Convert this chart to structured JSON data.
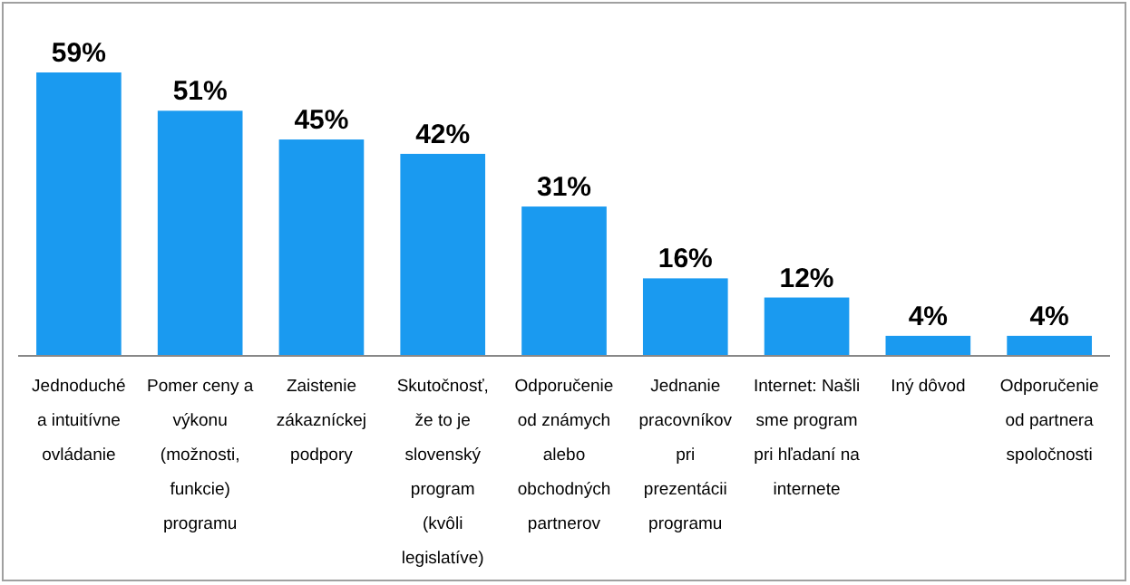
{
  "chart_data": {
    "type": "bar",
    "categories": [
      "Jednoduché a intuitívne ovládanie",
      "Pomer ceny a výkonu (možnosti, funkcie) programu",
      "Zaistenie zákazníckej podpory",
      "Skutočnosť, že to je slovenský program (kvôli legislatíve)",
      "Odporučenie od známych alebo obchodných partnerov",
      "Jednanie pracovníkov pri prezentácii programu",
      "Internet: Našli sme program pri hľadaní na internete",
      "Iný dôvod",
      "Odporučenie od partnera spoločnosti"
    ],
    "values": [
      59,
      51,
      45,
      42,
      31,
      16,
      12,
      4,
      4
    ],
    "value_labels": [
      "59%",
      "51%",
      "45%",
      "42%",
      "31%",
      "16%",
      "12%",
      "4%",
      "4%"
    ],
    "color": "#1a9af0"
  }
}
